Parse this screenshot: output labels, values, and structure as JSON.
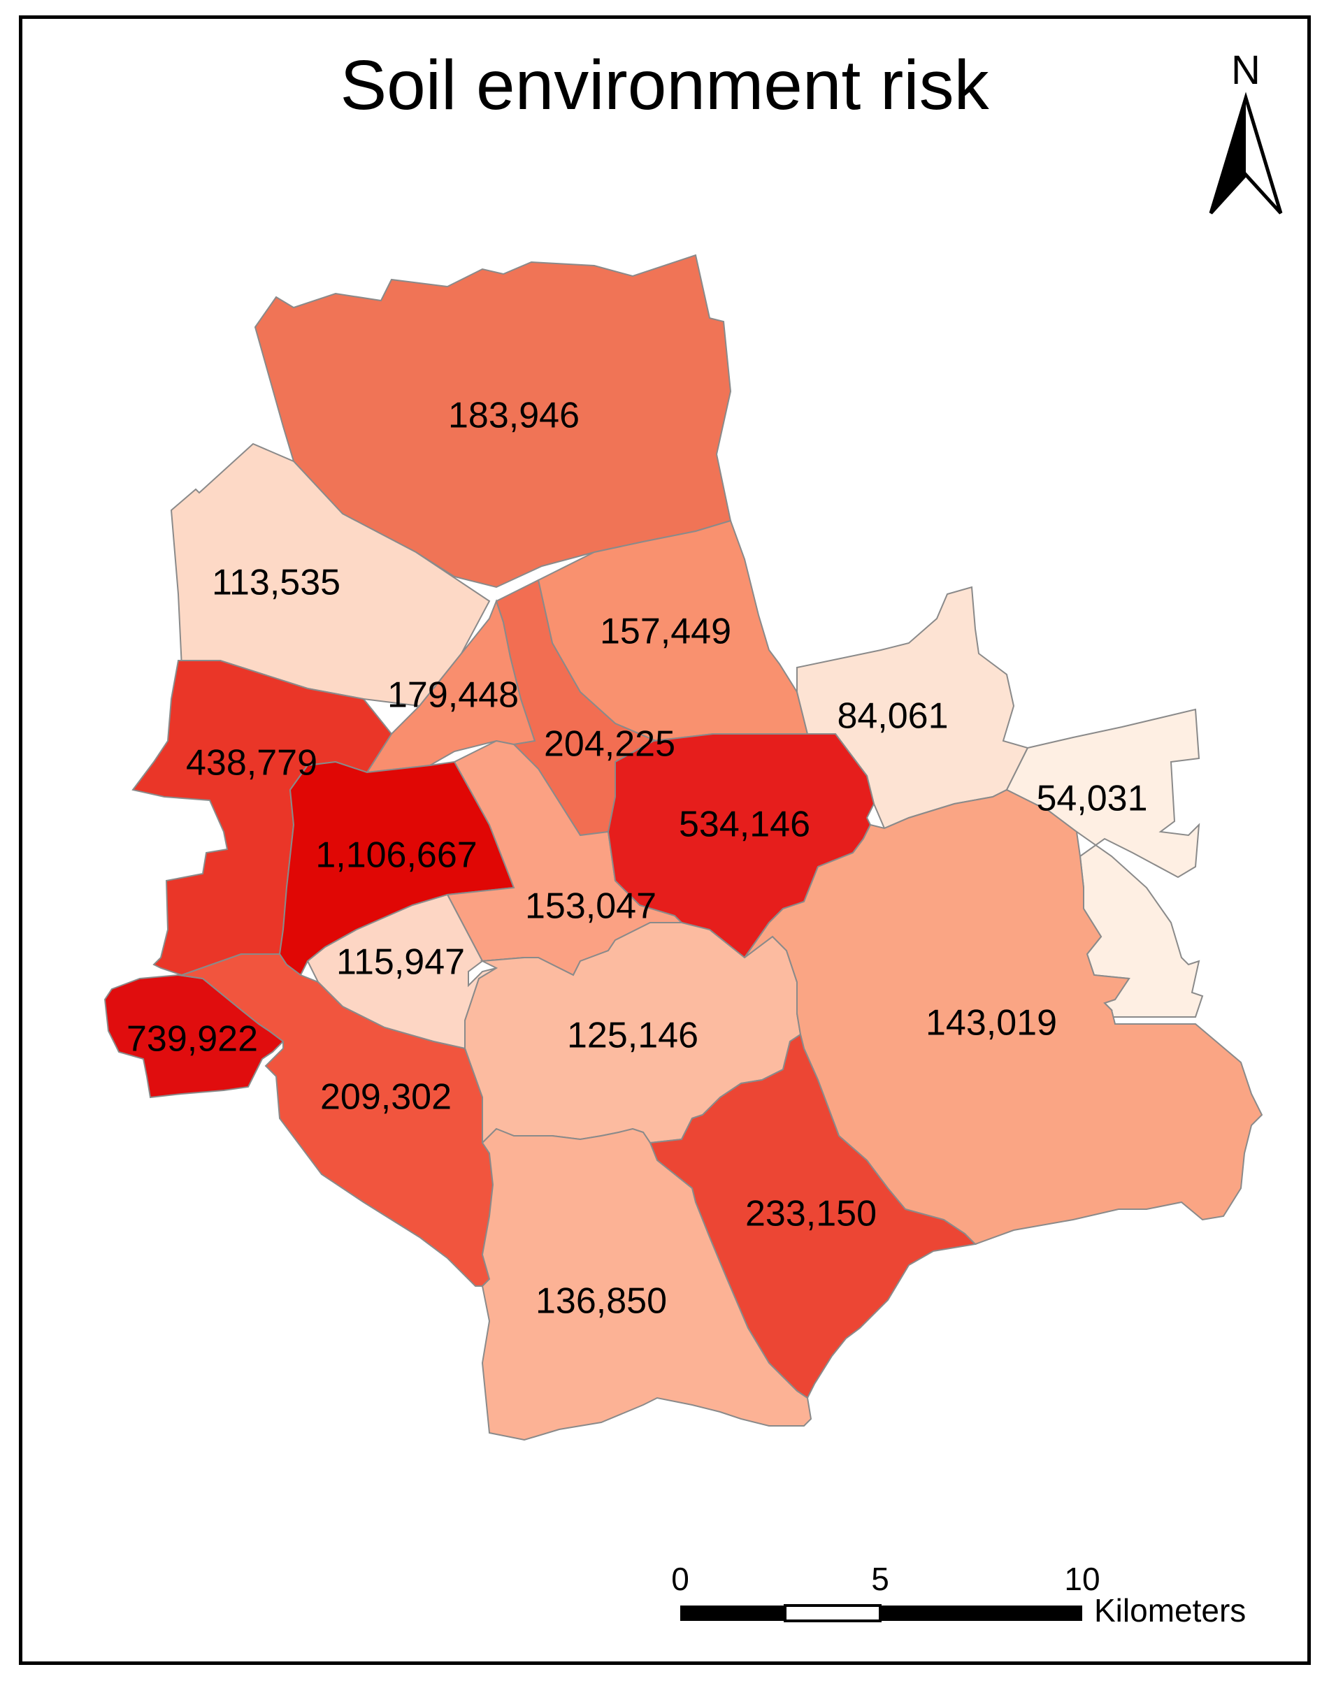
{
  "title": "Soil environment risk",
  "districts": [
    {
      "id": "north",
      "label": "183,946",
      "value": 183946,
      "color": "#f07456"
    },
    {
      "id": "northwest",
      "label": "113,535",
      "value": 113535,
      "color": "#fdd9c6"
    },
    {
      "id": "center-north-east",
      "label": "157,449",
      "value": 157449,
      "color": "#f9916f"
    },
    {
      "id": "center-north",
      "label": "179,448",
      "value": 179448,
      "color": "#f98e6e"
    },
    {
      "id": "center",
      "label": "204,225",
      "value": 204225,
      "color": "#f26e52"
    },
    {
      "id": "east-north",
      "label": "84,061",
      "value": 84061,
      "color": "#fde3d3"
    },
    {
      "id": "far-east",
      "label": "54,031",
      "value": 54031,
      "color": "#feefe3"
    },
    {
      "id": "west",
      "label": "438,779",
      "value": 438779,
      "color": "#ea3628"
    },
    {
      "id": "west-center",
      "label": "1,106,667",
      "value": 1106667,
      "color": "#e00705"
    },
    {
      "id": "center-south",
      "label": "153,047",
      "value": 153047,
      "color": "#fba183"
    },
    {
      "id": "east-center",
      "label": "534,146",
      "value": 534146,
      "color": "#e61e1c"
    },
    {
      "id": "southwest-center",
      "label": "115,947",
      "value": 115947,
      "color": "#fdd6c4"
    },
    {
      "id": "far-west",
      "label": "739,922",
      "value": 739922,
      "color": "#e00d0e"
    },
    {
      "id": "south-center",
      "label": "125,146",
      "value": 125146,
      "color": "#fcbba0"
    },
    {
      "id": "east",
      "label": "143,019",
      "value": 143019,
      "color": "#faa584"
    },
    {
      "id": "southwest",
      "label": "209,302",
      "value": 209302,
      "color": "#f1553e"
    },
    {
      "id": "south-east",
      "label": "233,150",
      "value": 233150,
      "color": "#ec4634"
    },
    {
      "id": "south",
      "label": "136,850",
      "value": 136850,
      "color": "#fcb295"
    }
  ],
  "north_arrow": {
    "label": "N"
  },
  "scale_bar": {
    "ticks": [
      "0",
      "5",
      "10"
    ],
    "unit": "Kilometers"
  }
}
